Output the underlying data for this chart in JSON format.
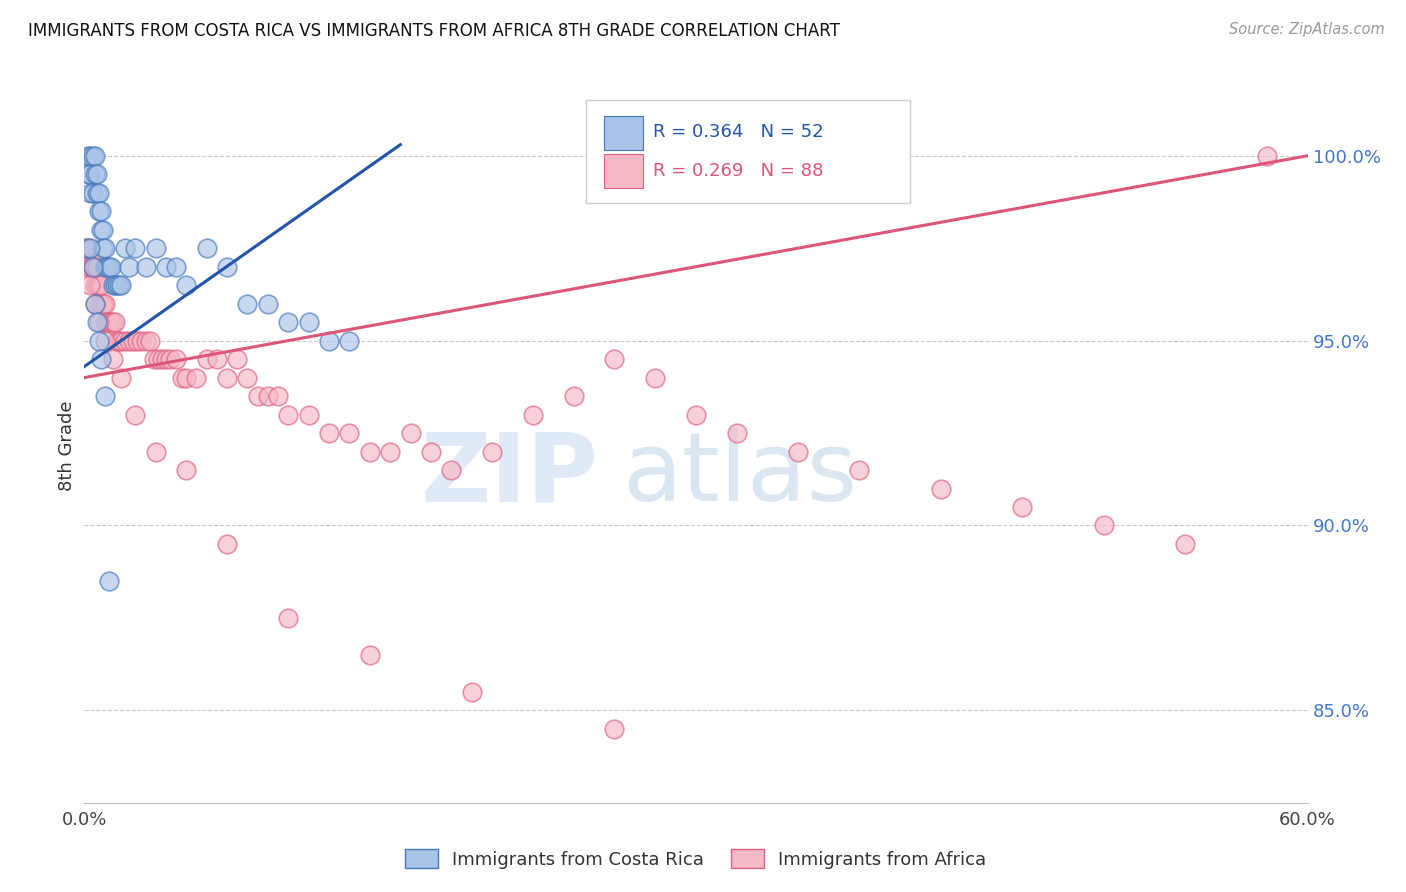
{
  "title": "IMMIGRANTS FROM COSTA RICA VS IMMIGRANTS FROM AFRICA 8TH GRADE CORRELATION CHART",
  "source": "Source: ZipAtlas.com",
  "ylabel": "8th Grade",
  "x_min": 0.0,
  "x_max": 0.6,
  "y_min": 82.5,
  "y_max": 101.8,
  "y_ticks": [
    85.0,
    90.0,
    95.0,
    100.0
  ],
  "y_tick_labels": [
    "85.0%",
    "90.0%",
    "95.0%",
    "100.0%"
  ],
  "x_tick_positions": [
    0.0,
    0.1,
    0.2,
    0.3,
    0.4,
    0.5,
    0.6
  ],
  "x_tick_labels": [
    "0.0%",
    "",
    "",
    "",
    "",
    "",
    "60.0%"
  ],
  "R_blue": 0.364,
  "N_blue": 52,
  "R_pink": 0.269,
  "N_pink": 88,
  "color_blue_fill": "#aac4e8",
  "color_blue_edge": "#4477bb",
  "color_pink_fill": "#f5b8c4",
  "color_pink_edge": "#e06080",
  "color_line_blue": "#2255aa",
  "color_line_pink": "#dd5577",
  "color_ytick": "#4477CC",
  "legend_label_blue": "Immigrants from Costa Rica",
  "legend_label_pink": "Immigrants from Africa",
  "blue_line_x0": 0.0,
  "blue_line_y0": 94.3,
  "blue_line_x1": 0.155,
  "blue_line_y1": 100.3,
  "pink_line_x0": 0.0,
  "pink_line_y0": 94.0,
  "pink_line_x1": 0.6,
  "pink_line_y1": 100.0,
  "blue_pts_x": [
    0.001,
    0.002,
    0.002,
    0.003,
    0.003,
    0.003,
    0.004,
    0.004,
    0.005,
    0.005,
    0.006,
    0.006,
    0.007,
    0.007,
    0.008,
    0.008,
    0.009,
    0.009,
    0.01,
    0.01,
    0.011,
    0.012,
    0.013,
    0.014,
    0.015,
    0.016,
    0.017,
    0.018,
    0.02,
    0.022,
    0.025,
    0.03,
    0.035,
    0.04,
    0.045,
    0.05,
    0.06,
    0.07,
    0.08,
    0.09,
    0.1,
    0.11,
    0.12,
    0.13,
    0.003,
    0.004,
    0.005,
    0.006,
    0.007,
    0.008,
    0.01,
    0.012
  ],
  "blue_pts_y": [
    97.5,
    100.0,
    99.5,
    100.0,
    99.5,
    99.0,
    100.0,
    99.0,
    100.0,
    99.5,
    99.5,
    99.0,
    99.0,
    98.5,
    98.5,
    98.0,
    98.0,
    97.5,
    97.5,
    97.0,
    97.0,
    97.0,
    97.0,
    96.5,
    96.5,
    96.5,
    96.5,
    96.5,
    97.5,
    97.0,
    97.5,
    97.0,
    97.5,
    97.0,
    97.0,
    96.5,
    97.5,
    97.0,
    96.0,
    96.0,
    95.5,
    95.5,
    95.0,
    95.0,
    97.5,
    97.0,
    96.0,
    95.5,
    95.0,
    94.5,
    93.5,
    88.5
  ],
  "pink_pts_x": [
    0.001,
    0.002,
    0.002,
    0.003,
    0.003,
    0.004,
    0.004,
    0.005,
    0.005,
    0.006,
    0.006,
    0.007,
    0.007,
    0.008,
    0.008,
    0.009,
    0.009,
    0.01,
    0.01,
    0.011,
    0.012,
    0.013,
    0.014,
    0.015,
    0.016,
    0.017,
    0.018,
    0.02,
    0.022,
    0.024,
    0.026,
    0.028,
    0.03,
    0.032,
    0.034,
    0.036,
    0.038,
    0.04,
    0.042,
    0.045,
    0.048,
    0.05,
    0.055,
    0.06,
    0.065,
    0.07,
    0.075,
    0.08,
    0.085,
    0.09,
    0.095,
    0.1,
    0.11,
    0.12,
    0.13,
    0.14,
    0.15,
    0.16,
    0.17,
    0.18,
    0.2,
    0.22,
    0.24,
    0.26,
    0.28,
    0.3,
    0.32,
    0.35,
    0.38,
    0.42,
    0.46,
    0.5,
    0.54,
    0.58,
    0.003,
    0.005,
    0.007,
    0.01,
    0.014,
    0.018,
    0.025,
    0.035,
    0.05,
    0.07,
    0.1,
    0.14,
    0.19,
    0.26
  ],
  "pink_pts_y": [
    97.5,
    97.5,
    97.0,
    97.5,
    97.0,
    97.0,
    97.0,
    97.0,
    96.5,
    97.0,
    96.5,
    96.5,
    96.0,
    96.5,
    96.0,
    96.0,
    96.0,
    96.0,
    95.5,
    95.5,
    95.5,
    95.5,
    95.5,
    95.5,
    95.0,
    95.0,
    95.0,
    95.0,
    95.0,
    95.0,
    95.0,
    95.0,
    95.0,
    95.0,
    94.5,
    94.5,
    94.5,
    94.5,
    94.5,
    94.5,
    94.0,
    94.0,
    94.0,
    94.5,
    94.5,
    94.0,
    94.5,
    94.0,
    93.5,
    93.5,
    93.5,
    93.0,
    93.0,
    92.5,
    92.5,
    92.0,
    92.0,
    92.5,
    92.0,
    91.5,
    92.0,
    93.0,
    93.5,
    94.5,
    94.0,
    93.0,
    92.5,
    92.0,
    91.5,
    91.0,
    90.5,
    90.0,
    89.5,
    100.0,
    96.5,
    96.0,
    95.5,
    95.0,
    94.5,
    94.0,
    93.0,
    92.0,
    91.5,
    89.5,
    87.5,
    86.5,
    85.5,
    84.5
  ]
}
